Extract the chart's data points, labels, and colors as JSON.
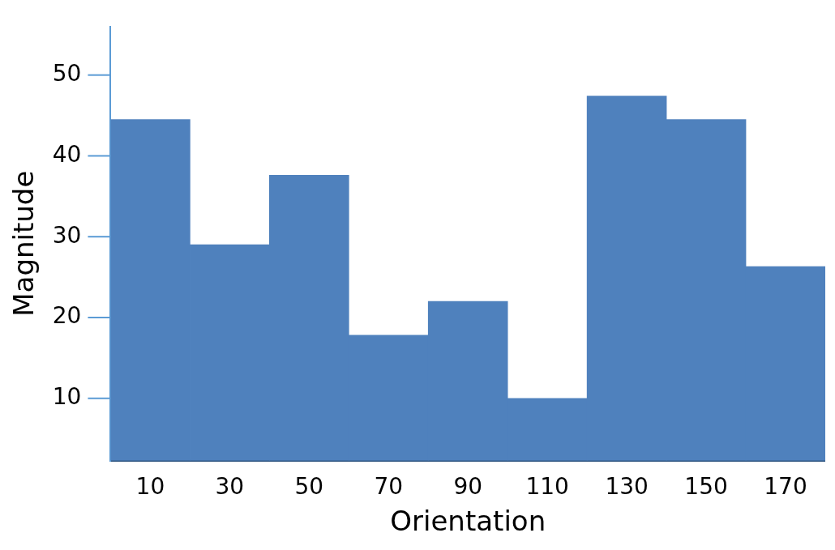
{
  "chart_data": {
    "type": "bar",
    "xlabel": "Orientation",
    "ylabel": "Magnitude",
    "categories": [
      "10",
      "30",
      "50",
      "70",
      "90",
      "110",
      "130",
      "150",
      "170"
    ],
    "values": [
      44.5,
      29.0,
      37.6,
      17.8,
      22.0,
      10.0,
      47.4,
      44.5,
      26.3
    ],
    "color": "#4f81bd",
    "ylim": [
      2.3,
      56
    ],
    "yticks": [
      10,
      20,
      30,
      40,
      50
    ],
    "grid": false,
    "legend": false
  }
}
